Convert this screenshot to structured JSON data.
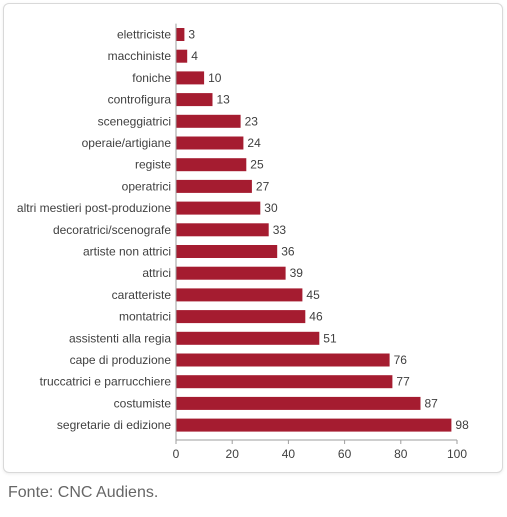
{
  "source_note": "Fonte: CNC Audiens.",
  "colors": {
    "bar": "#A51C30",
    "axis": "#9e9e9e",
    "text": "#404040"
  },
  "chart_data": {
    "type": "bar",
    "orientation": "horizontal",
    "title": "",
    "xlabel": "",
    "ylabel": "",
    "grid": false,
    "legend": "none",
    "xlim": [
      0,
      100
    ],
    "xticks": [
      0,
      20,
      40,
      60,
      80,
      100
    ],
    "categories": [
      "elettriciste",
      "macchiniste",
      "foniche",
      "controfigura",
      "sceneggiatrici",
      "operaie/artigiane",
      "registe",
      "operatrici",
      "altri mestieri post-produzione",
      "decoratrici/scenografe",
      "artiste non attrici",
      "attrici",
      "caratteriste",
      "montatrici",
      "assistenti alla regia",
      "cape di produzione",
      "truccatrici e parrucchiere",
      "costumiste",
      "segretarie di edizione"
    ],
    "values": [
      3,
      4,
      10,
      13,
      23,
      24,
      25,
      27,
      30,
      33,
      36,
      39,
      45,
      46,
      51,
      76,
      77,
      87,
      98
    ]
  }
}
